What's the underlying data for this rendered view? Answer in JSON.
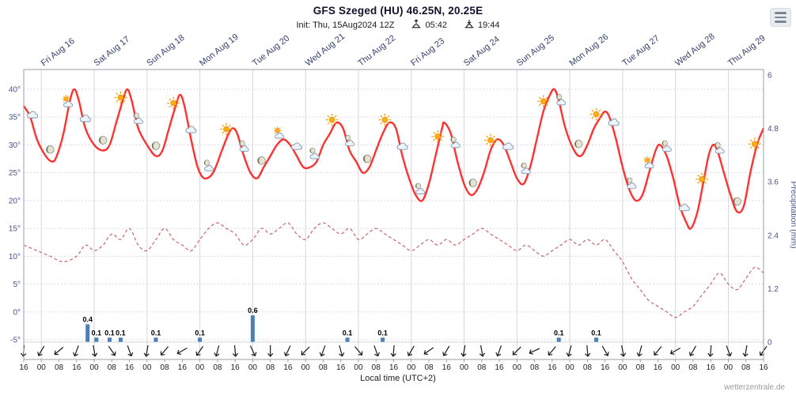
{
  "header": {
    "title": "GFS Szeged (HU) 46.25N, 20.25E",
    "init_label": "Init: Thu, 15Aug2024 12Z",
    "sunrise_time": "05:42",
    "sunset_time": "19:44"
  },
  "footer": {
    "xaxis_title": "Local time (UTC+2)",
    "watermark": "wetterzentrale.de"
  },
  "colors": {
    "temp_line": "#ff3232",
    "dewpoint_line": "#c97272",
    "precip_bar": "#4b7fb5",
    "grid": "#c8d0e4",
    "day_line": "#d6d6de",
    "border": "#9aa0a8",
    "axis_text": "#4a5585",
    "day_text": "#36426b",
    "tick_text": "#222222"
  },
  "axes": {
    "temp_labels": [
      "40°",
      "35°",
      "30°",
      "25°",
      "20°",
      "15°",
      "10°",
      "5°",
      "0°",
      "-5°"
    ],
    "temp_values": [
      40,
      35,
      30,
      25,
      20,
      15,
      10,
      5,
      0,
      -5
    ],
    "precip_labels": [
      "6",
      "4.8",
      "3.6",
      "2.4",
      "1.2",
      "0"
    ],
    "precip_values": [
      6,
      4.8,
      3.6,
      2.4,
      1.2,
      0
    ],
    "precip_axis_title": "Precipitation (mm)",
    "day_labels": [
      "Fri Aug 16",
      "Sat Aug 17",
      "Sun Aug 18",
      "Mon Aug 19",
      "Tue Aug 20",
      "Wed Aug 21",
      "Thu Aug 22",
      "Fri Aug 23",
      "Sat Aug 24",
      "Sun Aug 25",
      "Mon Aug 26",
      "Tue Aug 27",
      "Wed Aug 28",
      "Thu Aug 29"
    ],
    "time_ticks": [
      "16",
      "00",
      "08",
      "16",
      "00",
      "08",
      "16",
      "00",
      "08",
      "16",
      "00",
      "08",
      "16",
      "00",
      "08",
      "16",
      "00",
      "08",
      "16",
      "00",
      "08",
      "16",
      "00",
      "08",
      "16",
      "00",
      "08",
      "16",
      "00",
      "08",
      "16",
      "00",
      "08",
      "16",
      "00",
      "08",
      "16",
      "00",
      "08",
      "16",
      "00",
      "08",
      "16"
    ]
  },
  "chart_data": {
    "type": "line",
    "title": "GFS Szeged (HU) 46.25N, 20.25E",
    "x_unit": "hours since Thu 15Aug2024 16:00 local time",
    "x_range": [
      0,
      336
    ],
    "temp_ylim": [
      -5,
      40
    ],
    "precip_ylim": [
      0,
      6
    ],
    "grid": true,
    "series": [
      {
        "name": "Temperature (°C)",
        "style": "solid",
        "points": [
          [
            0,
            37
          ],
          [
            3,
            35
          ],
          [
            6,
            31
          ],
          [
            10,
            28
          ],
          [
            13,
            27
          ],
          [
            15,
            28
          ],
          [
            18,
            32
          ],
          [
            21,
            38
          ],
          [
            23,
            40
          ],
          [
            25,
            38
          ],
          [
            28,
            33
          ],
          [
            32,
            30
          ],
          [
            36,
            29
          ],
          [
            39,
            30
          ],
          [
            42,
            34
          ],
          [
            45,
            38
          ],
          [
            47,
            40
          ],
          [
            49,
            38
          ],
          [
            52,
            33
          ],
          [
            56,
            30
          ],
          [
            60,
            28
          ],
          [
            63,
            29
          ],
          [
            66,
            33
          ],
          [
            69,
            37
          ],
          [
            71,
            39
          ],
          [
            73,
            37
          ],
          [
            76,
            31
          ],
          [
            79,
            26
          ],
          [
            82,
            24
          ],
          [
            86,
            25
          ],
          [
            90,
            29
          ],
          [
            93,
            32
          ],
          [
            95,
            33
          ],
          [
            97,
            32
          ],
          [
            100,
            28
          ],
          [
            103,
            25
          ],
          [
            106,
            24
          ],
          [
            109,
            26
          ],
          [
            112,
            28
          ],
          [
            115,
            30
          ],
          [
            118,
            31
          ],
          [
            121,
            30
          ],
          [
            124,
            28
          ],
          [
            127,
            26
          ],
          [
            130,
            26
          ],
          [
            133,
            27
          ],
          [
            136,
            30
          ],
          [
            139,
            32
          ],
          [
            142,
            34
          ],
          [
            145,
            33
          ],
          [
            148,
            29
          ],
          [
            151,
            27
          ],
          [
            154,
            25
          ],
          [
            157,
            26
          ],
          [
            160,
            29
          ],
          [
            163,
            32
          ],
          [
            166,
            34
          ],
          [
            169,
            33
          ],
          [
            172,
            28
          ],
          [
            175,
            24
          ],
          [
            178,
            21
          ],
          [
            181,
            20
          ],
          [
            184,
            23
          ],
          [
            187,
            28
          ],
          [
            190,
            33
          ],
          [
            191,
            34
          ],
          [
            194,
            32
          ],
          [
            197,
            27
          ],
          [
            200,
            23
          ],
          [
            203,
            21
          ],
          [
            206,
            22
          ],
          [
            209,
            25
          ],
          [
            212,
            29
          ],
          [
            215,
            31
          ],
          [
            218,
            30
          ],
          [
            221,
            27
          ],
          [
            224,
            24
          ],
          [
            227,
            23
          ],
          [
            230,
            26
          ],
          [
            233,
            31
          ],
          [
            236,
            36
          ],
          [
            239,
            39
          ],
          [
            241,
            40
          ],
          [
            243,
            38
          ],
          [
            246,
            33
          ],
          [
            250,
            29
          ],
          [
            253,
            28
          ],
          [
            256,
            30
          ],
          [
            259,
            33
          ],
          [
            262,
            35
          ],
          [
            264,
            36
          ],
          [
            266,
            35
          ],
          [
            269,
            31
          ],
          [
            272,
            26
          ],
          [
            275,
            22
          ],
          [
            278,
            20
          ],
          [
            281,
            21
          ],
          [
            284,
            25
          ],
          [
            287,
            29
          ],
          [
            289,
            30
          ],
          [
            292,
            28
          ],
          [
            295,
            24
          ],
          [
            298,
            19
          ],
          [
            301,
            16
          ],
          [
            303,
            15
          ],
          [
            306,
            18
          ],
          [
            309,
            24
          ],
          [
            311,
            28
          ],
          [
            313,
            30
          ],
          [
            315,
            29
          ],
          [
            318,
            25
          ],
          [
            321,
            21
          ],
          [
            324,
            18
          ],
          [
            327,
            19
          ],
          [
            330,
            25
          ],
          [
            333,
            30
          ],
          [
            336,
            33
          ]
        ]
      },
      {
        "name": "Dew point (°C)",
        "style": "dashed",
        "points": [
          [
            0,
            12
          ],
          [
            6,
            11
          ],
          [
            12,
            10
          ],
          [
            18,
            9
          ],
          [
            24,
            10
          ],
          [
            28,
            12
          ],
          [
            32,
            11
          ],
          [
            36,
            12
          ],
          [
            40,
            14
          ],
          [
            44,
            13
          ],
          [
            48,
            15
          ],
          [
            52,
            12
          ],
          [
            56,
            11
          ],
          [
            60,
            13
          ],
          [
            64,
            15
          ],
          [
            68,
            13
          ],
          [
            72,
            12
          ],
          [
            76,
            11
          ],
          [
            80,
            13
          ],
          [
            84,
            15
          ],
          [
            88,
            16
          ],
          [
            92,
            15
          ],
          [
            96,
            14
          ],
          [
            100,
            12
          ],
          [
            104,
            13
          ],
          [
            108,
            15
          ],
          [
            112,
            14
          ],
          [
            116,
            15
          ],
          [
            120,
            16
          ],
          [
            124,
            14
          ],
          [
            128,
            13
          ],
          [
            132,
            15
          ],
          [
            136,
            16
          ],
          [
            140,
            15
          ],
          [
            144,
            14
          ],
          [
            148,
            15
          ],
          [
            152,
            13
          ],
          [
            156,
            14
          ],
          [
            160,
            15
          ],
          [
            164,
            14
          ],
          [
            168,
            13
          ],
          [
            172,
            12
          ],
          [
            176,
            11
          ],
          [
            180,
            12
          ],
          [
            184,
            13
          ],
          [
            188,
            12
          ],
          [
            192,
            13
          ],
          [
            196,
            12
          ],
          [
            200,
            13
          ],
          [
            204,
            14
          ],
          [
            208,
            15
          ],
          [
            212,
            14
          ],
          [
            216,
            13
          ],
          [
            220,
            12
          ],
          [
            224,
            11
          ],
          [
            228,
            12
          ],
          [
            232,
            11
          ],
          [
            236,
            10
          ],
          [
            240,
            11
          ],
          [
            244,
            12
          ],
          [
            248,
            13
          ],
          [
            252,
            12
          ],
          [
            256,
            13
          ],
          [
            260,
            12
          ],
          [
            264,
            13
          ],
          [
            268,
            11
          ],
          [
            272,
            9
          ],
          [
            276,
            6
          ],
          [
            280,
            4
          ],
          [
            284,
            2
          ],
          [
            288,
            1
          ],
          [
            292,
            0
          ],
          [
            296,
            -1
          ],
          [
            300,
            0
          ],
          [
            304,
            1
          ],
          [
            308,
            3
          ],
          [
            312,
            5
          ],
          [
            316,
            7
          ],
          [
            320,
            5
          ],
          [
            324,
            4
          ],
          [
            328,
            6
          ],
          [
            332,
            8
          ],
          [
            336,
            7
          ]
        ]
      }
    ],
    "precip_bars": [
      [
        29,
        0.4
      ],
      [
        33,
        0.1
      ],
      [
        39,
        0.1
      ],
      [
        44,
        0.1
      ],
      [
        60,
        0.1
      ],
      [
        80,
        0.1
      ],
      [
        104,
        0.6
      ],
      [
        147,
        0.1
      ],
      [
        163,
        0.1
      ],
      [
        243,
        0.1
      ],
      [
        260,
        0.1
      ]
    ],
    "icons": [
      [
        4,
        "cloud"
      ],
      [
        12,
        "moon"
      ],
      [
        20,
        "sun-cloud"
      ],
      [
        28,
        "cloud"
      ],
      [
        36,
        "moon"
      ],
      [
        44,
        "sun"
      ],
      [
        52,
        "moon-cloud"
      ],
      [
        60,
        "moon"
      ],
      [
        68,
        "sun"
      ],
      [
        76,
        "cloud"
      ],
      [
        84,
        "moon-cloud"
      ],
      [
        92,
        "sun"
      ],
      [
        100,
        "moon-cloud"
      ],
      [
        108,
        "moon"
      ],
      [
        116,
        "sun-cloud"
      ],
      [
        124,
        "cloud"
      ],
      [
        132,
        "moon-cloud"
      ],
      [
        140,
        "sun"
      ],
      [
        148,
        "moon-cloud"
      ],
      [
        156,
        "moon"
      ],
      [
        164,
        "sun"
      ],
      [
        172,
        "cloud"
      ],
      [
        180,
        "moon-cloud"
      ],
      [
        188,
        "sun"
      ],
      [
        196,
        "moon-cloud"
      ],
      [
        204,
        "moon"
      ],
      [
        212,
        "sun"
      ],
      [
        220,
        "cloud"
      ],
      [
        228,
        "moon-cloud"
      ],
      [
        236,
        "sun"
      ],
      [
        244,
        "moon-cloud"
      ],
      [
        252,
        "moon"
      ],
      [
        260,
        "sun"
      ],
      [
        268,
        "cloud"
      ],
      [
        276,
        "moon-cloud"
      ],
      [
        284,
        "sun-cloud"
      ],
      [
        292,
        "moon-cloud"
      ],
      [
        300,
        "cloud"
      ],
      [
        308,
        "sun"
      ],
      [
        316,
        "moon-cloud"
      ],
      [
        324,
        "moon"
      ],
      [
        332,
        "sun"
      ]
    ],
    "wind_arrow_angles": [
      5,
      30,
      50,
      20,
      -10,
      -35,
      -20,
      10,
      40,
      60,
      35,
      15,
      -5,
      -25,
      0,
      25,
      45,
      20,
      -15,
      -40,
      -20,
      5,
      30,
      55,
      30,
      10,
      -10,
      20,
      45,
      65,
      40,
      15,
      -5,
      -30,
      -10,
      15,
      40,
      60,
      30,
      5,
      -20,
      10,
      35
    ]
  }
}
